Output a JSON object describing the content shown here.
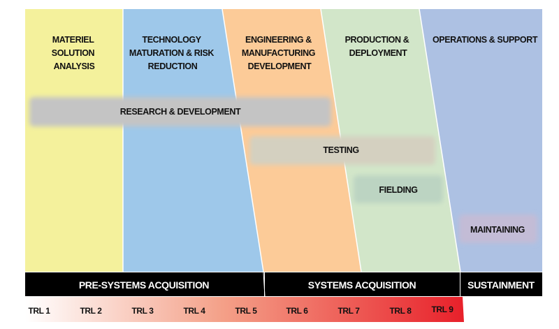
{
  "phases": [
    {
      "lines": [
        "MATERIEL",
        "SOLUTION",
        "ANALYSIS"
      ],
      "color": "#f4f19c"
    },
    {
      "lines": [
        "TECHNOLOGY",
        "MATURATION & RISK",
        "REDUCTION"
      ],
      "color": "#9ec8ea"
    },
    {
      "lines": [
        "ENGINEERING &",
        "MANUFACTURING",
        "DEVELOPMENT"
      ],
      "color": "#fccb98"
    },
    {
      "lines": [
        "PRODUCTION &",
        "DEPLOYMENT"
      ],
      "color": "#d2e6c9"
    },
    {
      "lines": [
        "OPERATIONS & SUPPORT"
      ],
      "color": "#adc1e3"
    }
  ],
  "activities": [
    {
      "label": "RESEARCH & DEVELOPMENT",
      "color": "#c4c4c4"
    },
    {
      "label": "TESTING",
      "color": "#d4d0c0"
    },
    {
      "label": "FIELDING",
      "color": "#bcd4c2"
    },
    {
      "label": "MAINTAINING",
      "color": "#c3bcd6"
    }
  ],
  "acquisition": [
    "PRE-SYSTEMS ACQUISITION",
    "SYSTEMS ACQUISITION",
    "SUSTAINMENT"
  ],
  "trl": [
    "TRL 1",
    "TRL 2",
    "TRL 3",
    "TRL 4",
    "TRL 5",
    "TRL 6",
    "TRL 7",
    "TRL 8",
    "TRL 9"
  ],
  "trl_gradient": {
    "start": "#ffffff",
    "end": "#e8202a"
  }
}
